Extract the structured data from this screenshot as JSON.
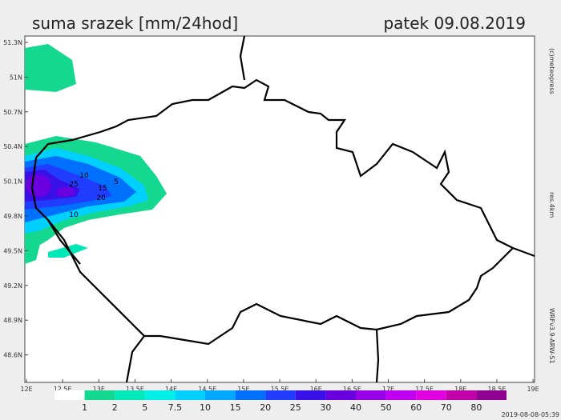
{
  "header": {
    "title": "suma srazek [mm/24hod]",
    "date": "patek 09.08.2019"
  },
  "map": {
    "lat_labels": [
      "51.3N",
      "51N",
      "50.7N",
      "50.4N",
      "50.1N",
      "49.8N",
      "49.5N",
      "49.2N",
      "48.9N",
      "48.6N"
    ],
    "lon_labels": [
      "12E",
      "12.5E",
      "13E",
      "13.5E",
      "14E",
      "14.5E",
      "15E",
      "15.5E",
      "16E",
      "16.5E",
      "17E",
      "17.5E",
      "18E",
      "18.5E",
      "19E"
    ],
    "contour_labels": [
      "10",
      "5",
      "25",
      "15",
      "20",
      "10"
    ]
  },
  "side": {
    "copyright": "(c)meteopress",
    "resolution": "res.4km",
    "model": "WRFv3.9-ARW-S1"
  },
  "legend": {
    "colors": [
      "#ffffff",
      "#14d890",
      "#00e8b8",
      "#00f0e8",
      "#00d0ff",
      "#00a8ff",
      "#0070ff",
      "#1f3cff",
      "#3a10e8",
      "#6a00e0",
      "#9800e8",
      "#c000f0",
      "#e000e0",
      "#c000a8",
      "#900090"
    ],
    "labels": [
      "1",
      "2",
      "5",
      "7.5",
      "10",
      "15",
      "20",
      "25",
      "30",
      "40",
      "50",
      "60",
      "70",
      "80"
    ]
  },
  "footer": {
    "timestamp": "2019-08-08-05:39"
  }
}
